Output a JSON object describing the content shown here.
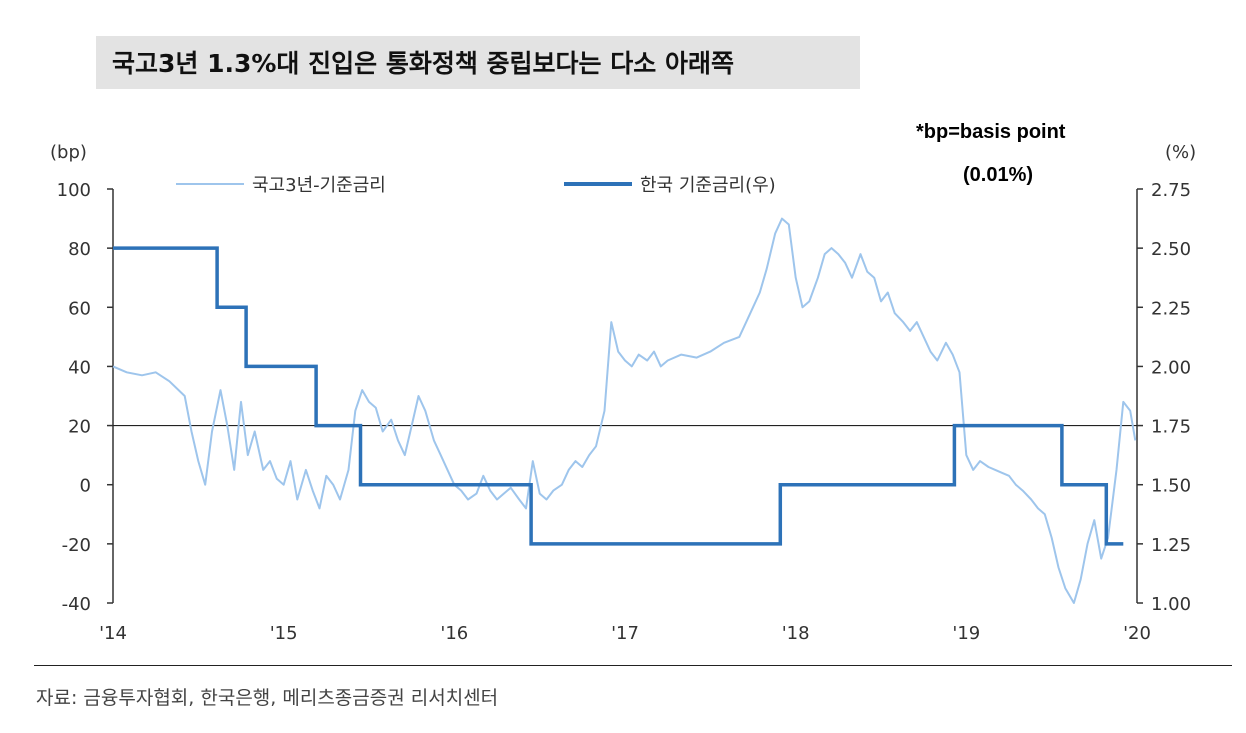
{
  "title": "국고3년 1.3%대 진입은 통화정책 중립보다는 다소 아래쪽",
  "note_line1": "*bp=basis point",
  "note_line2": "(0.01%)",
  "source": "자료: 금융투자협회, 한국은행, 메리츠종금증권 리서치센터",
  "chart_data": {
    "type": "line",
    "left_axis_unit": "(bp)",
    "right_axis_unit": "(%)",
    "left_ylim": [
      -40,
      100
    ],
    "right_ylim": [
      1.0,
      2.75
    ],
    "left_ticks": [
      "100",
      "80",
      "60",
      "40",
      "20",
      "0",
      "-20",
      "-40"
    ],
    "right_ticks": [
      "2.75",
      "2.50",
      "2.25",
      "2.00",
      "1.75",
      "1.50",
      "1.25",
      "1.00"
    ],
    "x_ticks": [
      "'14",
      "'15",
      "'16",
      "'17",
      "'18",
      "'19",
      "'20"
    ],
    "xlim": [
      2014.0,
      2020.0
    ],
    "reference_line_left_value": 20,
    "legend_position": "top",
    "colors": {
      "spread": "#9ec5ec",
      "base_rate": "#2d72b8",
      "axis": "#333333"
    },
    "series": [
      {
        "name": "국고3년-기준금리",
        "axis": "left",
        "x": [
          2014.0,
          2014.08,
          2014.17,
          2014.25,
          2014.33,
          2014.42,
          2014.46,
          2014.5,
          2014.54,
          2014.58,
          2014.63,
          2014.67,
          2014.71,
          2014.75,
          2014.79,
          2014.83,
          2014.88,
          2014.92,
          2014.96,
          2015.0,
          2015.04,
          2015.08,
          2015.13,
          2015.17,
          2015.21,
          2015.25,
          2015.29,
          2015.33,
          2015.38,
          2015.42,
          2015.46,
          2015.5,
          2015.54,
          2015.58,
          2015.63,
          2015.67,
          2015.71,
          2015.75,
          2015.79,
          2015.83,
          2015.88,
          2015.92,
          2015.96,
          2016.0,
          2016.04,
          2016.08,
          2016.13,
          2016.17,
          2016.21,
          2016.25,
          2016.29,
          2016.33,
          2016.38,
          2016.42,
          2016.46,
          2016.5,
          2016.54,
          2016.58,
          2016.63,
          2016.67,
          2016.71,
          2016.75,
          2016.79,
          2016.83,
          2016.88,
          2016.92,
          2016.96,
          2017.0,
          2017.04,
          2017.08,
          2017.13,
          2017.17,
          2017.21,
          2017.25,
          2017.33,
          2017.42,
          2017.5,
          2017.58,
          2017.67,
          2017.71,
          2017.75,
          2017.79,
          2017.83,
          2017.88,
          2017.92,
          2017.96,
          2018.0,
          2018.04,
          2018.08,
          2018.13,
          2018.17,
          2018.21,
          2018.25,
          2018.29,
          2018.33,
          2018.38,
          2018.42,
          2018.46,
          2018.5,
          2018.54,
          2018.58,
          2018.63,
          2018.67,
          2018.71,
          2018.75,
          2018.79,
          2018.83,
          2018.88,
          2018.92,
          2018.96,
          2019.0,
          2019.04,
          2019.08,
          2019.13,
          2019.17,
          2019.21,
          2019.25,
          2019.29,
          2019.33,
          2019.38,
          2019.42,
          2019.46,
          2019.5,
          2019.54,
          2019.58,
          2019.63,
          2019.67,
          2019.71,
          2019.75,
          2019.79,
          2019.83,
          2019.88,
          2019.92,
          2019.96,
          2019.99
        ],
        "values": [
          40,
          38,
          37,
          38,
          35,
          30,
          18,
          8,
          0,
          18,
          32,
          20,
          5,
          28,
          10,
          18,
          5,
          8,
          2,
          0,
          8,
          -5,
          5,
          -2,
          -8,
          3,
          0,
          -5,
          5,
          25,
          32,
          28,
          26,
          18,
          22,
          15,
          10,
          20,
          30,
          25,
          15,
          10,
          5,
          0,
          -2,
          -5,
          -3,
          3,
          -2,
          -5,
          -3,
          -1,
          -5,
          -8,
          8,
          -3,
          -5,
          -2,
          0,
          5,
          8,
          6,
          10,
          13,
          25,
          55,
          45,
          42,
          40,
          44,
          42,
          45,
          40,
          42,
          44,
          43,
          45,
          48,
          50,
          55,
          60,
          65,
          73,
          85,
          90,
          88,
          70,
          60,
          62,
          70,
          78,
          80,
          78,
          75,
          70,
          78,
          72,
          70,
          62,
          65,
          58,
          55,
          52,
          55,
          50,
          45,
          42,
          48,
          44,
          38,
          10,
          5,
          8,
          6,
          5,
          4,
          3,
          0,
          -2,
          -5,
          -8,
          -10,
          -18,
          -28,
          -35,
          -40,
          -32,
          -20,
          -12,
          -25,
          -18,
          5,
          28,
          25,
          15
        ]
      },
      {
        "name": "한국 기준금리(우)",
        "axis": "right",
        "x": [
          2014.0,
          2014.61,
          2014.61,
          2014.78,
          2014.78,
          2015.19,
          2015.19,
          2015.45,
          2015.45,
          2016.45,
          2016.45,
          2017.91,
          2017.91,
          2018.93,
          2018.93,
          2019.56,
          2019.56,
          2019.82,
          2019.82,
          2019.92
        ],
        "values": [
          2.5,
          2.5,
          2.25,
          2.25,
          2.0,
          2.0,
          1.75,
          1.75,
          1.5,
          1.5,
          1.25,
          1.25,
          1.5,
          1.5,
          1.75,
          1.75,
          1.5,
          1.5,
          1.25,
          1.25
        ]
      }
    ]
  }
}
